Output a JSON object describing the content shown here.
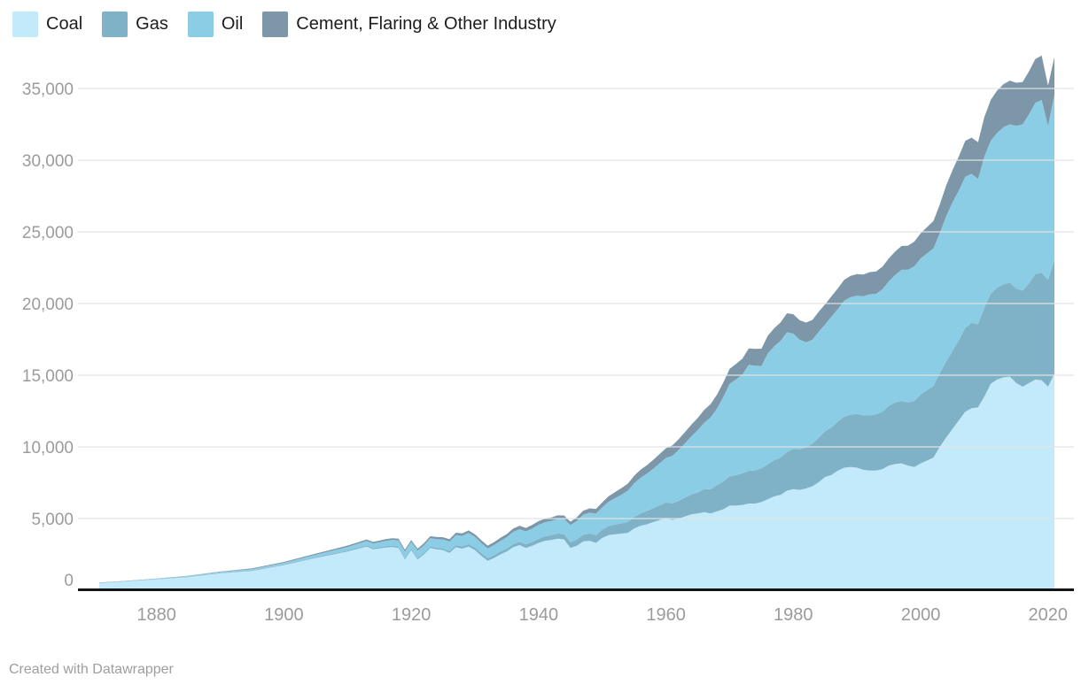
{
  "footer": {
    "text": "Created with Datawrapper"
  },
  "axis_colors": {
    "tick_label": "#9b9b9b",
    "gridline": "#e4e4e4",
    "baseline": "#141414"
  },
  "chart_data": {
    "type": "area",
    "stacked": true,
    "grid": "horizontal",
    "legend_position": "top-left",
    "x_range": [
      1871,
      2021
    ],
    "y_range": [
      0,
      37500
    ],
    "x_ticks": [
      1880,
      1900,
      1920,
      1940,
      1960,
      1980,
      2000,
      2020
    ],
    "y_ticks": [
      0,
      5000,
      10000,
      15000,
      20000,
      25000,
      30000,
      35000
    ],
    "y_tick_labels": [
      "0",
      "5,000",
      "10,000",
      "15,000",
      "20,000",
      "25,000",
      "30,000",
      "35,000"
    ],
    "series": [
      {
        "name": "Coal",
        "color": "#c3eafa",
        "points": [
          [
            1871,
            500
          ],
          [
            1875,
            600
          ],
          [
            1880,
            760
          ],
          [
            1885,
            920
          ],
          [
            1890,
            1180
          ],
          [
            1895,
            1350
          ],
          [
            1900,
            1750
          ],
          [
            1905,
            2250
          ],
          [
            1910,
            2700
          ],
          [
            1913,
            3050
          ],
          [
            1914,
            2850
          ],
          [
            1916,
            2980
          ],
          [
            1917,
            3020
          ],
          [
            1918,
            2950
          ],
          [
            1919,
            2150
          ],
          [
            1920,
            2800
          ],
          [
            1921,
            2150
          ],
          [
            1922,
            2500
          ],
          [
            1923,
            2950
          ],
          [
            1924,
            2850
          ],
          [
            1925,
            2800
          ],
          [
            1926,
            2600
          ],
          [
            1927,
            3000
          ],
          [
            1928,
            2900
          ],
          [
            1929,
            3050
          ],
          [
            1930,
            2800
          ],
          [
            1931,
            2400
          ],
          [
            1932,
            2050
          ],
          [
            1933,
            2250
          ],
          [
            1934,
            2500
          ],
          [
            1935,
            2700
          ],
          [
            1936,
            3000
          ],
          [
            1937,
            3150
          ],
          [
            1938,
            2950
          ],
          [
            1939,
            3100
          ],
          [
            1940,
            3300
          ],
          [
            1941,
            3450
          ],
          [
            1942,
            3500
          ],
          [
            1943,
            3600
          ],
          [
            1944,
            3550
          ],
          [
            1945,
            2950
          ],
          [
            1946,
            3100
          ],
          [
            1947,
            3400
          ],
          [
            1948,
            3450
          ],
          [
            1949,
            3300
          ],
          [
            1950,
            3650
          ],
          [
            1951,
            3850
          ],
          [
            1952,
            3900
          ],
          [
            1954,
            4000
          ],
          [
            1955,
            4300
          ],
          [
            1956,
            4500
          ],
          [
            1957,
            4600
          ],
          [
            1958,
            4750
          ],
          [
            1959,
            4900
          ],
          [
            1960,
            5050
          ],
          [
            1961,
            4900
          ],
          [
            1962,
            5000
          ],
          [
            1963,
            5150
          ],
          [
            1964,
            5300
          ],
          [
            1965,
            5350
          ],
          [
            1966,
            5450
          ],
          [
            1967,
            5350
          ],
          [
            1968,
            5500
          ],
          [
            1969,
            5650
          ],
          [
            1970,
            5900
          ],
          [
            1971,
            5900
          ],
          [
            1972,
            5950
          ],
          [
            1973,
            6050
          ],
          [
            1974,
            6050
          ],
          [
            1975,
            6150
          ],
          [
            1976,
            6350
          ],
          [
            1977,
            6550
          ],
          [
            1978,
            6650
          ],
          [
            1979,
            6950
          ],
          [
            1980,
            7050
          ],
          [
            1981,
            7000
          ],
          [
            1982,
            7100
          ],
          [
            1983,
            7250
          ],
          [
            1984,
            7550
          ],
          [
            1985,
            7900
          ],
          [
            1986,
            8050
          ],
          [
            1987,
            8350
          ],
          [
            1988,
            8550
          ],
          [
            1989,
            8600
          ],
          [
            1990,
            8550
          ],
          [
            1991,
            8400
          ],
          [
            1992,
            8350
          ],
          [
            1993,
            8350
          ],
          [
            1994,
            8450
          ],
          [
            1995,
            8700
          ],
          [
            1996,
            8800
          ],
          [
            1997,
            8850
          ],
          [
            1998,
            8700
          ],
          [
            1999,
            8600
          ],
          [
            2000,
            8850
          ],
          [
            2001,
            9050
          ],
          [
            2002,
            9250
          ],
          [
            2003,
            10000
          ],
          [
            2004,
            10650
          ],
          [
            2005,
            11250
          ],
          [
            2006,
            11850
          ],
          [
            2007,
            12450
          ],
          [
            2008,
            12700
          ],
          [
            2009,
            12750
          ],
          [
            2010,
            13500
          ],
          [
            2011,
            14400
          ],
          [
            2012,
            14700
          ],
          [
            2013,
            14850
          ],
          [
            2014,
            14900
          ],
          [
            2015,
            14450
          ],
          [
            2016,
            14200
          ],
          [
            2017,
            14450
          ],
          [
            2018,
            14700
          ],
          [
            2019,
            14650
          ],
          [
            2020,
            14200
          ],
          [
            2021,
            15100
          ]
        ]
      },
      {
        "name": "Gas",
        "color": "#7fb2c7",
        "points": [
          [
            1871,
            5
          ],
          [
            1880,
            10
          ],
          [
            1890,
            30
          ],
          [
            1900,
            45
          ],
          [
            1910,
            70
          ],
          [
            1915,
            85
          ],
          [
            1920,
            95
          ],
          [
            1925,
            115
          ],
          [
            1930,
            180
          ],
          [
            1935,
            200
          ],
          [
            1940,
            290
          ],
          [
            1945,
            400
          ],
          [
            1950,
            580
          ],
          [
            1955,
            810
          ],
          [
            1960,
            1080
          ],
          [
            1965,
            1470
          ],
          [
            1970,
            2050
          ],
          [
            1973,
            2280
          ],
          [
            1975,
            2350
          ],
          [
            1978,
            2600
          ],
          [
            1980,
            2800
          ],
          [
            1982,
            2850
          ],
          [
            1984,
            3100
          ],
          [
            1986,
            3300
          ],
          [
            1988,
            3550
          ],
          [
            1990,
            3750
          ],
          [
            1992,
            3850
          ],
          [
            1994,
            4000
          ],
          [
            1996,
            4300
          ],
          [
            1998,
            4400
          ],
          [
            2000,
            4800
          ],
          [
            2002,
            5000
          ],
          [
            2004,
            5300
          ],
          [
            2005,
            5450
          ],
          [
            2006,
            5600
          ],
          [
            2007,
            5850
          ],
          [
            2008,
            5950
          ],
          [
            2009,
            5800
          ],
          [
            2010,
            6200
          ],
          [
            2011,
            6300
          ],
          [
            2012,
            6400
          ],
          [
            2013,
            6500
          ],
          [
            2014,
            6550
          ],
          [
            2015,
            6600
          ],
          [
            2016,
            6700
          ],
          [
            2017,
            6950
          ],
          [
            2018,
            7350
          ],
          [
            2019,
            7500
          ],
          [
            2020,
            7450
          ],
          [
            2021,
            7900
          ]
        ]
      },
      {
        "name": "Oil",
        "color": "#8bcde5",
        "points": [
          [
            1871,
            15
          ],
          [
            1880,
            30
          ],
          [
            1890,
            60
          ],
          [
            1900,
            120
          ],
          [
            1905,
            170
          ],
          [
            1910,
            250
          ],
          [
            1915,
            350
          ],
          [
            1920,
            480
          ],
          [
            1925,
            630
          ],
          [
            1929,
            780
          ],
          [
            1930,
            750
          ],
          [
            1932,
            680
          ],
          [
            1934,
            750
          ],
          [
            1936,
            850
          ],
          [
            1938,
            900
          ],
          [
            1940,
            970
          ],
          [
            1942,
            1000
          ],
          [
            1944,
            1050
          ],
          [
            1945,
            1200
          ],
          [
            1947,
            1400
          ],
          [
            1950,
            1550
          ],
          [
            1953,
            2000
          ],
          [
            1955,
            2350
          ],
          [
            1958,
            2750
          ],
          [
            1960,
            3100
          ],
          [
            1962,
            3550
          ],
          [
            1964,
            4050
          ],
          [
            1966,
            4650
          ],
          [
            1968,
            5350
          ],
          [
            1970,
            6450
          ],
          [
            1972,
            6900
          ],
          [
            1973,
            7400
          ],
          [
            1974,
            7300
          ],
          [
            1975,
            7150
          ],
          [
            1976,
            7750
          ],
          [
            1977,
            7950
          ],
          [
            1978,
            8150
          ],
          [
            1979,
            8350
          ],
          [
            1980,
            8050
          ],
          [
            1981,
            7650
          ],
          [
            1982,
            7350
          ],
          [
            1983,
            7250
          ],
          [
            1984,
            7400
          ],
          [
            1985,
            7450
          ],
          [
            1986,
            7750
          ],
          [
            1987,
            7850
          ],
          [
            1988,
            8100
          ],
          [
            1989,
            8200
          ],
          [
            1990,
            8250
          ],
          [
            1991,
            8300
          ],
          [
            1992,
            8450
          ],
          [
            1993,
            8400
          ],
          [
            1994,
            8550
          ],
          [
            1995,
            8700
          ],
          [
            1996,
            8900
          ],
          [
            1997,
            9150
          ],
          [
            1998,
            9250
          ],
          [
            1999,
            9400
          ],
          [
            2000,
            9500
          ],
          [
            2001,
            9550
          ],
          [
            2002,
            9600
          ],
          [
            2003,
            9750
          ],
          [
            2004,
            10150
          ],
          [
            2005,
            10350
          ],
          [
            2006,
            10450
          ],
          [
            2007,
            10550
          ],
          [
            2008,
            10400
          ],
          [
            2009,
            10150
          ],
          [
            2010,
            10550
          ],
          [
            2011,
            10650
          ],
          [
            2012,
            10800
          ],
          [
            2013,
            10950
          ],
          [
            2014,
            11050
          ],
          [
            2015,
            11350
          ],
          [
            2016,
            11600
          ],
          [
            2017,
            11800
          ],
          [
            2018,
            11950
          ],
          [
            2019,
            12050
          ],
          [
            2020,
            10750
          ],
          [
            2021,
            11550
          ]
        ]
      },
      {
        "name": "Cement, Flaring & Other Industry",
        "color": "#7d97a8",
        "points": [
          [
            1871,
            15
          ],
          [
            1880,
            20
          ],
          [
            1890,
            35
          ],
          [
            1900,
            60
          ],
          [
            1910,
            95
          ],
          [
            1920,
            130
          ],
          [
            1930,
            180
          ],
          [
            1940,
            260
          ],
          [
            1945,
            230
          ],
          [
            1950,
            350
          ],
          [
            1955,
            530
          ],
          [
            1960,
            680
          ],
          [
            1965,
            850
          ],
          [
            1970,
            1050
          ],
          [
            1975,
            1200
          ],
          [
            1980,
            1350
          ],
          [
            1985,
            1400
          ],
          [
            1990,
            1500
          ],
          [
            1995,
            1600
          ],
          [
            2000,
            1750
          ],
          [
            2003,
            2000
          ],
          [
            2005,
            2250
          ],
          [
            2007,
            2500
          ],
          [
            2009,
            2550
          ],
          [
            2010,
            2750
          ],
          [
            2012,
            2950
          ],
          [
            2014,
            3050
          ],
          [
            2016,
            2950
          ],
          [
            2018,
            3050
          ],
          [
            2019,
            3100
          ],
          [
            2020,
            2800
          ],
          [
            2021,
            2650
          ]
        ]
      }
    ]
  }
}
